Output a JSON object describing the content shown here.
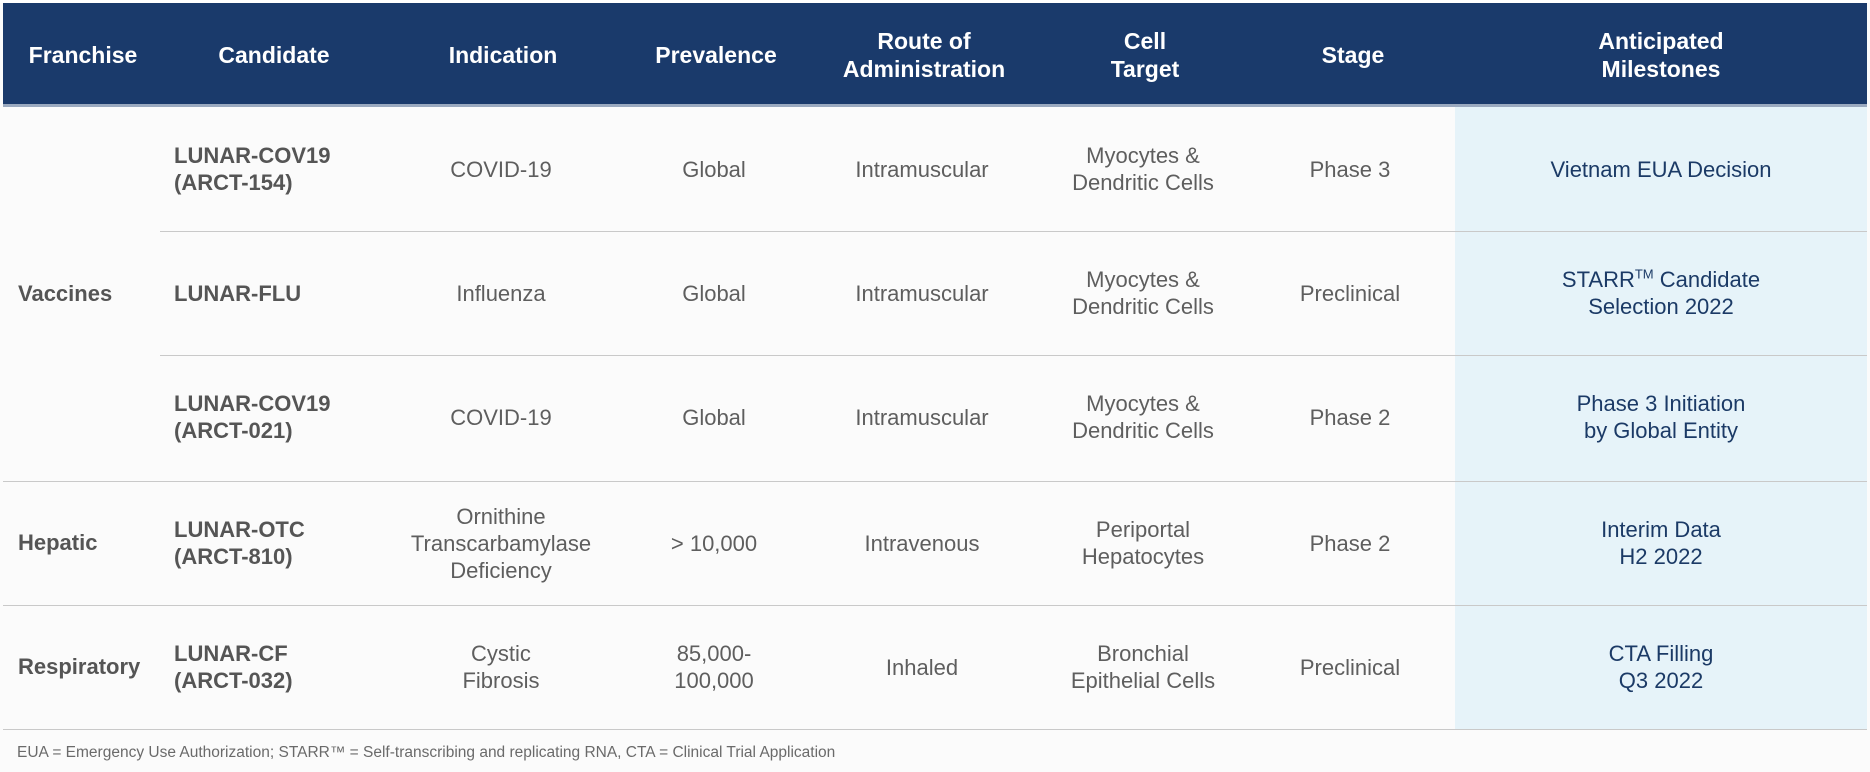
{
  "headers": [
    "Franchise",
    "Candidate",
    "Indication",
    "Prevalence",
    "Route of\nAdministration",
    "Cell\nTarget",
    "Stage",
    "Anticipated\nMilestones"
  ],
  "franchises": {
    "vaccines": "Vaccines",
    "hepatic": "Hepatic",
    "respiratory": "Respiratory"
  },
  "rows": [
    {
      "candidate": "LUNAR-COV19\n(ARCT-154)",
      "indication": "COVID-19",
      "prevalence": "Global",
      "route": "Intramuscular",
      "cell_target": "Myocytes &\nDendritic Cells",
      "stage": "Phase 3",
      "milestone": "Vietnam EUA Decision"
    },
    {
      "candidate": "LUNAR-FLU",
      "indication": "Influenza",
      "prevalence": "Global",
      "route": "Intramuscular",
      "cell_target": "Myocytes &\nDendritic Cells",
      "stage": "Preclinical",
      "milestone_pre": "STARR",
      "milestone_sup": "TM",
      "milestone_post": " Candidate",
      "milestone_line2": "Selection 2022"
    },
    {
      "candidate": "LUNAR-COV19\n(ARCT-021)",
      "indication": "COVID-19",
      "prevalence": "Global",
      "route": "Intramuscular",
      "cell_target": "Myocytes &\nDendritic Cells",
      "stage": "Phase 2",
      "milestone": "Phase 3 Initiation\nby Global Entity"
    },
    {
      "candidate": "LUNAR-OTC\n(ARCT-810)",
      "indication": "Ornithine\nTranscarbamylase\nDeficiency",
      "prevalence": "> 10,000",
      "route": "Intravenous",
      "cell_target": "Periportal\nHepatocytes",
      "stage": "Phase 2",
      "milestone": "Interim Data\nH2 2022"
    },
    {
      "candidate": "LUNAR-CF\n(ARCT-032)",
      "indication": "Cystic\nFibrosis",
      "prevalence": "85,000-\n100,000",
      "route": "Inhaled",
      "cell_target": "Bronchial\nEpithelial Cells",
      "stage": "Preclinical",
      "milestone": "CTA Filling\nQ3 2022"
    }
  ],
  "footnote": "EUA = Emergency Use Authorization; STARR™ = Self-transcribing and replicating RNA, CTA = Clinical Trial Application"
}
